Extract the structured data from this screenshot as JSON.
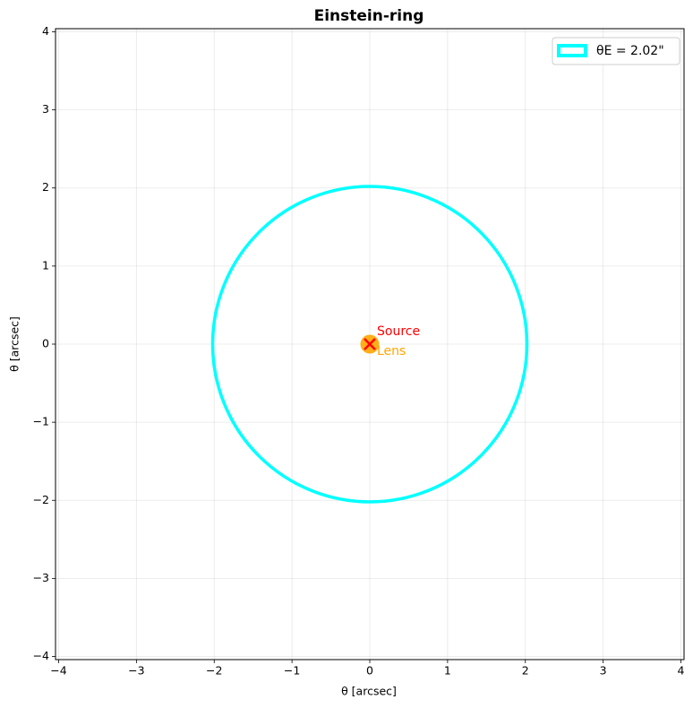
{
  "chart_data": {
    "type": "einstein-ring",
    "title": "Einstein-ring",
    "xlabel": "θ [arcsec]",
    "ylabel": "θ [arcsec]",
    "xlim": [
      -4.04,
      4.04
    ],
    "ylim": [
      -4.04,
      4.04
    ],
    "xticks": [
      {
        "value": -4,
        "label": "−4"
      },
      {
        "value": -3,
        "label": "−3"
      },
      {
        "value": -2,
        "label": "−2"
      },
      {
        "value": -1,
        "label": "−1"
      },
      0,
      1,
      2,
      3,
      4
    ],
    "yticks": [
      {
        "value": -4,
        "label": "−4"
      },
      {
        "value": -3,
        "label": "−3"
      },
      {
        "value": -2,
        "label": "−2"
      },
      {
        "value": -1,
        "label": "−1"
      },
      0,
      1,
      2,
      3,
      4
    ],
    "grid": true,
    "legend": "upper right",
    "ring": {
      "name": "θE = 2.02\"",
      "radius": 2.02,
      "center": [
        0,
        0
      ],
      "color": "#00ffff"
    },
    "lens": {
      "label": "Lens",
      "x": 0,
      "y": 0,
      "color": "#ffa500"
    },
    "source": {
      "label": "Source",
      "x": 0,
      "y": 0,
      "color": "#ff0000"
    }
  }
}
